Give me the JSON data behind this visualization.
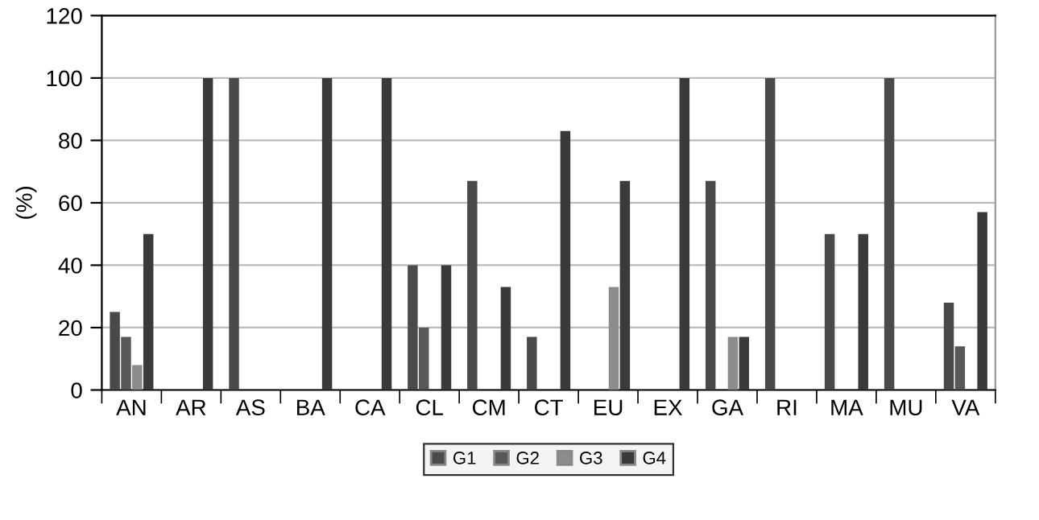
{
  "chart_data": {
    "type": "bar",
    "ylabel": "(%)",
    "categories": [
      "AN",
      "AR",
      "AS",
      "BA",
      "CA",
      "CL",
      "CM",
      "CT",
      "EU",
      "EX",
      "GA",
      "RI",
      "MA",
      "MU",
      "VA"
    ],
    "series": [
      {
        "name": "G1",
        "color": "#4a4a4a",
        "values": [
          25,
          null,
          100,
          null,
          null,
          40,
          67,
          17,
          null,
          null,
          67,
          100,
          50,
          100,
          28
        ]
      },
      {
        "name": "G2",
        "color": "#585858",
        "values": [
          17,
          null,
          null,
          null,
          null,
          20,
          null,
          null,
          null,
          null,
          null,
          null,
          null,
          null,
          14
        ]
      },
      {
        "name": "G3",
        "color": "#8c8c8c",
        "values": [
          8,
          null,
          null,
          null,
          null,
          null,
          null,
          null,
          33,
          null,
          17,
          null,
          null,
          null,
          null
        ]
      },
      {
        "name": "G4",
        "color": "#3a3a3a",
        "values": [
          50,
          100,
          null,
          100,
          100,
          40,
          33,
          83,
          67,
          100,
          17,
          null,
          50,
          null,
          57
        ]
      }
    ],
    "ylim": [
      0,
      120
    ],
    "yticks": [
      0,
      20,
      40,
      60,
      80,
      100,
      120
    ],
    "grid": "y",
    "legend": "bottom"
  }
}
